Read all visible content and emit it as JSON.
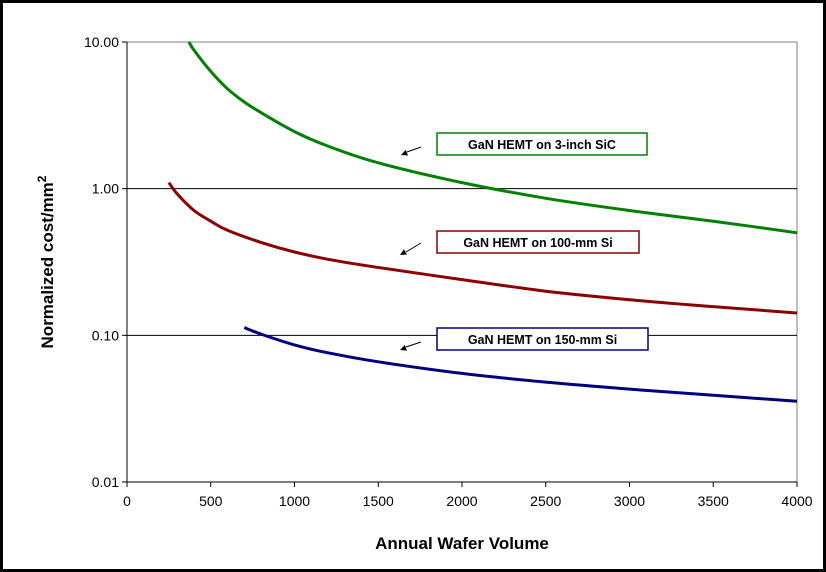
{
  "chart_data": {
    "type": "line",
    "xlabel": "Annual Wafer Volume",
    "ylabel": "Normalized cost/mm",
    "ylabel_superscript": "2",
    "xlim": [
      0,
      4000
    ],
    "ylim": [
      0.01,
      10
    ],
    "y_scale": "log",
    "grid": "horizontal major lines",
    "x_ticks": [
      0,
      500,
      1000,
      1500,
      2000,
      2500,
      3000,
      3500,
      4000
    ],
    "x_tick_labels": [
      "0",
      "500",
      "1000",
      "1500",
      "2000",
      "2500",
      "3000",
      "3500",
      "4000"
    ],
    "y_ticks": [
      0.01,
      0.1,
      1,
      10
    ],
    "y_tick_labels": [
      "0.01",
      "0.10",
      "1.00",
      "10.00"
    ],
    "series": [
      {
        "name": "GaN HEMT on 3-inch SiC",
        "color": "#008000",
        "x": [
          370,
          400,
          500,
          600,
          700,
          800,
          1000,
          1200,
          1500,
          2000,
          2500,
          3000,
          3500,
          4000
        ],
        "y": [
          10.0,
          8.8,
          6.3,
          4.8,
          3.9,
          3.3,
          2.45,
          1.95,
          1.5,
          1.1,
          0.86,
          0.71,
          0.6,
          0.5
        ]
      },
      {
        "name": "GaN HEMT on 100-mm Si",
        "color": "#8B0000",
        "x": [
          250,
          300,
          400,
          500,
          600,
          800,
          1000,
          1200,
          1500,
          2000,
          2500,
          3000,
          3500,
          4000
        ],
        "y": [
          1.1,
          0.92,
          0.71,
          0.6,
          0.52,
          0.43,
          0.37,
          0.33,
          0.29,
          0.24,
          0.2,
          0.175,
          0.157,
          0.142
        ]
      },
      {
        "name": "GaN HEMT on 150-mm Si",
        "color": "#000080",
        "x": [
          700,
          800,
          1000,
          1200,
          1500,
          2000,
          2500,
          3000,
          3500,
          4000
        ],
        "y": [
          0.113,
          0.102,
          0.086,
          0.076,
          0.066,
          0.055,
          0.048,
          0.043,
          0.039,
          0.0355
        ]
      }
    ],
    "annotations": [
      {
        "text": "GaN HEMT on 3-inch SiC",
        "border": "#008000"
      },
      {
        "text": "GaN HEMT on 100-mm Si",
        "border": "#8B0000"
      },
      {
        "text": "GaN HEMT on 150-mm Si",
        "border": "#000080"
      }
    ]
  }
}
